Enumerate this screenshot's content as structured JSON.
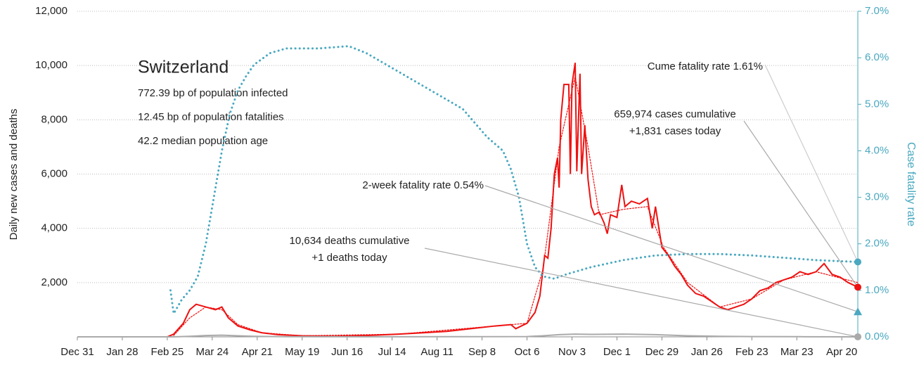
{
  "chart_data": {
    "type": "line",
    "title": "Switzerland",
    "subtitle_lines": [
      "772.39 bp of population infected",
      "12.45 bp of population fatalities",
      "42.2 median population age"
    ],
    "ylabel": "Daily new cases and deaths",
    "y2label": "Case fatality rate",
    "xlim": [
      0,
      486
    ],
    "xticks": [
      {
        "value": 0,
        "label": "Dec 31"
      },
      {
        "value": 28,
        "label": "Jan 28"
      },
      {
        "value": 56,
        "label": "Feb 25"
      },
      {
        "value": 84,
        "label": "Mar 24"
      },
      {
        "value": 112,
        "label": "Apr 21"
      },
      {
        "value": 140,
        "label": "May 19"
      },
      {
        "value": 168,
        "label": "Jun 16"
      },
      {
        "value": 196,
        "label": "Jul 14"
      },
      {
        "value": 224,
        "label": "Aug 11"
      },
      {
        "value": 252,
        "label": "Sep 8"
      },
      {
        "value": 280,
        "label": "Oct 6"
      },
      {
        "value": 308,
        "label": "Nov 3"
      },
      {
        "value": 336,
        "label": "Dec 1"
      },
      {
        "value": 364,
        "label": "Dec 29"
      },
      {
        "value": 392,
        "label": "Jan 26"
      },
      {
        "value": 420,
        "label": "Feb 23"
      },
      {
        "value": 448,
        "label": "Mar 23"
      },
      {
        "value": 476,
        "label": "Apr 20"
      }
    ],
    "ylim": [
      0,
      12000
    ],
    "yticks": [
      {
        "value": 2000,
        "label": "2,000"
      },
      {
        "value": 4000,
        "label": "4,000"
      },
      {
        "value": 6000,
        "label": "6,000"
      },
      {
        "value": 8000,
        "label": "8,000"
      },
      {
        "value": 10000,
        "label": "10,000"
      },
      {
        "value": 12000,
        "label": "12,000"
      }
    ],
    "y2lim": [
      0,
      7
    ],
    "y2ticks": [
      {
        "value": 0,
        "label": "0.0%"
      },
      {
        "value": 1,
        "label": "1.0%"
      },
      {
        "value": 2,
        "label": "2.0%"
      },
      {
        "value": 3,
        "label": "3.0%"
      },
      {
        "value": 4,
        "label": "4.0%"
      },
      {
        "value": 5,
        "label": "5.0%"
      },
      {
        "value": 6,
        "label": "6.0%"
      },
      {
        "value": 7,
        "label": "7.0%"
      }
    ],
    "grid": true,
    "series": [
      {
        "color": "#ee1111",
        "style": "solid",
        "x": [
          0,
          56,
          60,
          66,
          70,
          74,
          80,
          86,
          90,
          94,
          100,
          108,
          115,
          125,
          140,
          160,
          180,
          200,
          215,
          230,
          245,
          260,
          270,
          273,
          280,
          285,
          288,
          291,
          293,
          295,
          297,
          299,
          300,
          301,
          303,
          306,
          307,
          308,
          310,
          311,
          313,
          314,
          316,
          318,
          320,
          322,
          325,
          328,
          330,
          332,
          336,
          339,
          341,
          345,
          350,
          355,
          358,
          360,
          364,
          368,
          372,
          376,
          380,
          385,
          390,
          395,
          400,
          405,
          410,
          415,
          420,
          425,
          430,
          435,
          440,
          445,
          450,
          455,
          460,
          465,
          470,
          475,
          480,
          486
        ],
        "values": [
          0,
          0,
          100,
          500,
          1000,
          1200,
          1100,
          1000,
          1100,
          700,
          400,
          250,
          150,
          80,
          40,
          20,
          50,
          100,
          150,
          200,
          300,
          400,
          450,
          300,
          500,
          900,
          1500,
          3000,
          2900,
          4000,
          6000,
          6600,
          5500,
          8000,
          9300,
          9300,
          6000,
          9300,
          10100,
          6100,
          9700,
          6000,
          7800,
          5800,
          4800,
          4500,
          4600,
          4200,
          3800,
          4500,
          4400,
          5600,
          4800,
          5000,
          4900,
          5100,
          4000,
          4800,
          3300,
          3000,
          2600,
          2300,
          1900,
          1600,
          1500,
          1300,
          1100,
          1000,
          1100,
          1200,
          1400,
          1700,
          1800,
          2000,
          2100,
          2200,
          2400,
          2300,
          2400,
          2700,
          2300,
          2200,
          2000,
          1831
        ]
      },
      {
        "color": "#ee1111",
        "style": "dotted",
        "x": [
          60,
          70,
          80,
          90,
          100,
          115,
          140,
          200,
          260,
          280,
          290,
          300,
          310,
          318,
          325,
          340,
          355,
          365,
          380,
          400,
          420,
          440,
          460,
          486
        ],
        "values": [
          50,
          700,
          1100,
          1000,
          450,
          150,
          40,
          100,
          400,
          500,
          2500,
          7000,
          9600,
          7000,
          4500,
          4700,
          4800,
          3300,
          2000,
          1100,
          1400,
          2100,
          2400,
          2000
        ]
      },
      {
        "color": "#aaaaaa",
        "style": "solid",
        "x": [
          0,
          60,
          70,
          80,
          90,
          100,
          110,
          130,
          200,
          280,
          290,
          300,
          310,
          320,
          340,
          360,
          380,
          400,
          420,
          450,
          486
        ],
        "values": [
          0,
          0,
          20,
          50,
          60,
          40,
          20,
          5,
          2,
          10,
          40,
          80,
          100,
          90,
          100,
          80,
          40,
          20,
          10,
          5,
          1
        ]
      },
      {
        "color": "#4aa8c0",
        "style": "dotted",
        "axis": "y2",
        "x": [
          58,
          60,
          65,
          70,
          75,
          80,
          85,
          90,
          95,
          100,
          105,
          110,
          120,
          130,
          150,
          169,
          180,
          200,
          220,
          240,
          255,
          265,
          270,
          275,
          280,
          285,
          290,
          297,
          305,
          320,
          340,
          360,
          380,
          400,
          420,
          440,
          460,
          486
        ],
        "values": [
          1.0,
          0.5,
          0.8,
          1.0,
          1.3,
          2.0,
          3.0,
          4.0,
          4.8,
          5.3,
          5.6,
          5.85,
          6.1,
          6.2,
          6.2,
          6.25,
          6.1,
          5.7,
          5.3,
          4.9,
          4.3,
          4.0,
          3.6,
          3.0,
          2.0,
          1.5,
          1.3,
          1.25,
          1.35,
          1.5,
          1.65,
          1.75,
          1.78,
          1.78,
          1.75,
          1.7,
          1.65,
          1.61
        ]
      }
    ],
    "markers": [
      {
        "x": 486,
        "value": 1.61,
        "axis": "y2",
        "shape": "circle",
        "color": "#4aa8c0",
        "label_lines": [
          "Cume fatality rate 1.61%"
        ]
      },
      {
        "x": 486,
        "value": 1831,
        "shape": "circle",
        "color": "#ee1111",
        "label_lines": [
          "659,974 cases cumulative",
          "+1,831 cases today"
        ]
      },
      {
        "x": 486,
        "value": 0.54,
        "axis": "y2",
        "shape": "triangle",
        "color": "#4aa8c0",
        "label_lines": [
          "2-week fatality rate 0.54%"
        ]
      },
      {
        "x": 486,
        "value": 1,
        "shape": "circle",
        "color": "#aaaaaa",
        "label_lines": [
          "10,634 deaths cumulative",
          "+1 deaths today"
        ]
      }
    ]
  }
}
